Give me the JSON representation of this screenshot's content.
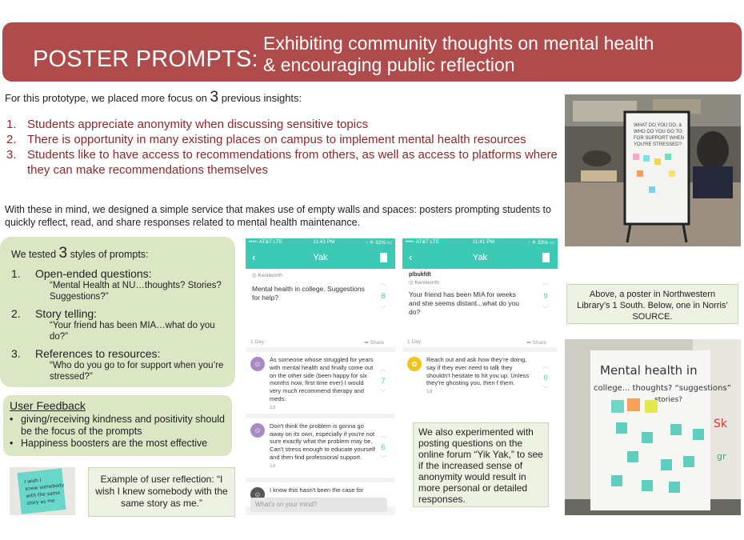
{
  "banner": {
    "left": "POSTER PROMPTS:",
    "right_line1": "Exhibiting community thoughts on mental health",
    "right_line2": "& encouraging public reflection"
  },
  "intro": {
    "before": "For this prototype, we placed more focus on ",
    "count": "3",
    "after": " previous insights:"
  },
  "insights": [
    {
      "num": "1.",
      "text": "Students appreciate anonymity when discussing sensitive topics"
    },
    {
      "num": "2.",
      "text": "There is opportunity in many existing places on campus to implement mental health resources"
    },
    {
      "num": "3.",
      "text": "Students like to have access to recommendations from others, as well as access to platforms where they can make recommendations themselves"
    }
  ],
  "with_these": "With these in mind, we designed a simple service that makes use of empty walls and spaces: posters prompting students to quickly reflect, read, and share responses related to mental health maintenance.",
  "prompts": {
    "lead_before": "We tested ",
    "lead_count": "3",
    "lead_after": " styles of prompts:",
    "items": [
      {
        "num": "1.",
        "title": "Open-ended questions:",
        "quote": "“Mental Health at NU…thoughts? Stories? Suggestions?”"
      },
      {
        "num": "2.",
        "title": "Story telling:",
        "quote": "“Your friend has been MIA…what do you do?”"
      },
      {
        "num": "3.",
        "title": "References to resources:",
        "quote": "“Who do you go to for support when you’re stressed?”"
      }
    ]
  },
  "feedback": {
    "title": "User Feedback",
    "bullets": [
      "giving/receiving kindness and positivity should be the focus of the prompts",
      "Happiness boosters are the most effective"
    ]
  },
  "example": "Example of user reflection: “I wish I knew somebody with the same story as me.”",
  "yikyak": "We also experimented with posting questions on the online forum “Yik Yak,” to see if the increased sense of anonymity would result in more personal or detailed responses.",
  "caption": "Above, a poster in Northwestern Library’s 1 South. Below, one in Norris’ SOURCE.",
  "poster_text": {
    "line1": "Mental health in",
    "line2": "college... thoughts? “suggestions”",
    "line3": "stories?"
  },
  "phone1": {
    "carrier": "••••◦ AT&T  LTE",
    "time": "11:41 PM",
    "battery": "↑ ✳ 32% ▭",
    "title": "Yak",
    "location": "◎ Kenilworth",
    "post": "Mental health in college. Suggestions for help?",
    "score": "8",
    "age": "1 Day",
    "share": "➦ Share",
    "replies": [
      {
        "text": "As someone whose struggled for years with mental health and finally come out on the other side (been happy for six months now, first time ever) I would very much recommend therapy and meds.",
        "score": "7",
        "age": "1d"
      },
      {
        "text": "Don't think the problem is gonna go away on its own, especially if you're not sure exactly what the problem may be. Can't stress enough to educate yourself and then find professional support.",
        "score": "6",
        "age": "1d"
      },
      {
        "text": "I know this hasn't been the case for",
        "score": "",
        "age": ""
      }
    ],
    "input": "What's on your mind?"
  },
  "phone2": {
    "carrier": "••••◦ AT&T  LTE",
    "time": "11:41 PM",
    "battery": "↑ ✳ 33% ▭",
    "title": "Yak",
    "user": "plbukfdt",
    "location": "◎ Kenilworth",
    "post": "Your friend has been MIA for weeks and she seems distant...what do you do?",
    "score": "9",
    "age": "1 Day",
    "share": "➦ Share",
    "replies": [
      {
        "text": "Reach out and ask how they're doing, say if they ever need to talk they shouldn't hesitate to hit you up. Unless they're ghosting you, then f        them.",
        "score": "0",
        "age": "1d"
      }
    ]
  },
  "note_image_text": "I wish I knew somebody with the same story as me",
  "colors": {
    "banner": "#b04b4b",
    "insight": "#8a2a2a",
    "green_box": "#dbe6c5",
    "yak_teal": "#3ccab5"
  }
}
